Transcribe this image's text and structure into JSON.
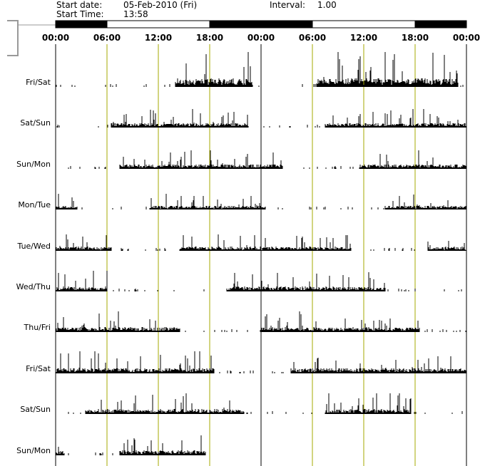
{
  "header": {
    "start_date_label": "Start date:",
    "start_date_value": "05-Feb-2010 (Fri)",
    "interval_label": "Interval:",
    "interval_value": "1.00",
    "start_time_label": "Start Time:",
    "start_time_value": "13:58"
  },
  "colors": {
    "background": "#ffffff",
    "activity": "#000000",
    "dark_period": "#000000",
    "light_period": "#ffffff",
    "marker_line": "#a5a800",
    "axis": "#000000",
    "bracket": "#999999"
  },
  "chart_data": {
    "type": "bar",
    "title": "",
    "layout": "double-plotted actogram",
    "xlabel": "",
    "ylabel": "",
    "x_range_hours": [
      0,
      48
    ],
    "x_tick_labels": [
      "00:00",
      "06:00",
      "12:00",
      "18:00",
      "00:00",
      "06:00",
      "12:00",
      "18:00",
      "00:00"
    ],
    "light_dark_bar": [
      {
        "state": "dark",
        "start_hour": 0,
        "end_hour": 6
      },
      {
        "state": "light",
        "start_hour": 6,
        "end_hour": 18
      },
      {
        "state": "dark",
        "start_hour": 18,
        "end_hour": 30
      },
      {
        "state": "light",
        "start_hour": 30,
        "end_hour": 42
      },
      {
        "state": "dark",
        "start_hour": 42,
        "end_hour": 48
      }
    ],
    "rows": [
      {
        "label": "Fri/Sat",
        "active_segments": [
          [
            14.0,
            23.0
          ],
          [
            30.5,
            47.0
          ]
        ],
        "peak_level": 0.95
      },
      {
        "label": "Sat/Sun",
        "active_segments": [
          [
            6.5,
            22.5
          ],
          [
            31.5,
            48.0
          ]
        ],
        "peak_level": 0.5
      },
      {
        "label": "Sun/Mon",
        "active_segments": [
          [
            7.5,
            26.5
          ],
          [
            35.5,
            48.0
          ]
        ],
        "peak_level": 0.5
      },
      {
        "label": "Mon/Tue",
        "active_segments": [
          [
            0.0,
            2.5
          ],
          [
            11.0,
            24.5
          ],
          [
            38.5,
            48.0
          ]
        ],
        "peak_level": 0.45
      },
      {
        "label": "Tue/Wed",
        "active_segments": [
          [
            0.0,
            6.5
          ],
          [
            14.5,
            34.5
          ],
          [
            43.5,
            48.0
          ]
        ],
        "peak_level": 0.45
      },
      {
        "label": "Wed/Thu",
        "active_segments": [
          [
            0.0,
            6.0
          ],
          [
            20.0,
            38.5
          ]
        ],
        "peak_level": 0.55
      },
      {
        "label": "Thu/Fri",
        "active_segments": [
          [
            0.0,
            14.5
          ],
          [
            24.0,
            42.5
          ]
        ],
        "peak_level": 0.55
      },
      {
        "label": "Fri/Sat",
        "active_segments": [
          [
            0.0,
            18.5
          ],
          [
            27.5,
            48.0
          ]
        ],
        "peak_level": 0.6
      },
      {
        "label": "Sat/Sun",
        "active_segments": [
          [
            3.5,
            22.0
          ],
          [
            31.5,
            41.5
          ]
        ],
        "peak_level": 0.55
      },
      {
        "label": "Sun/Mon",
        "active_segments": [
          [
            0.0,
            1.0
          ],
          [
            7.5,
            17.5
          ]
        ],
        "peak_level": 0.55,
        "ends_at_hour": 17.7
      }
    ],
    "grid": true,
    "legend": "none"
  }
}
